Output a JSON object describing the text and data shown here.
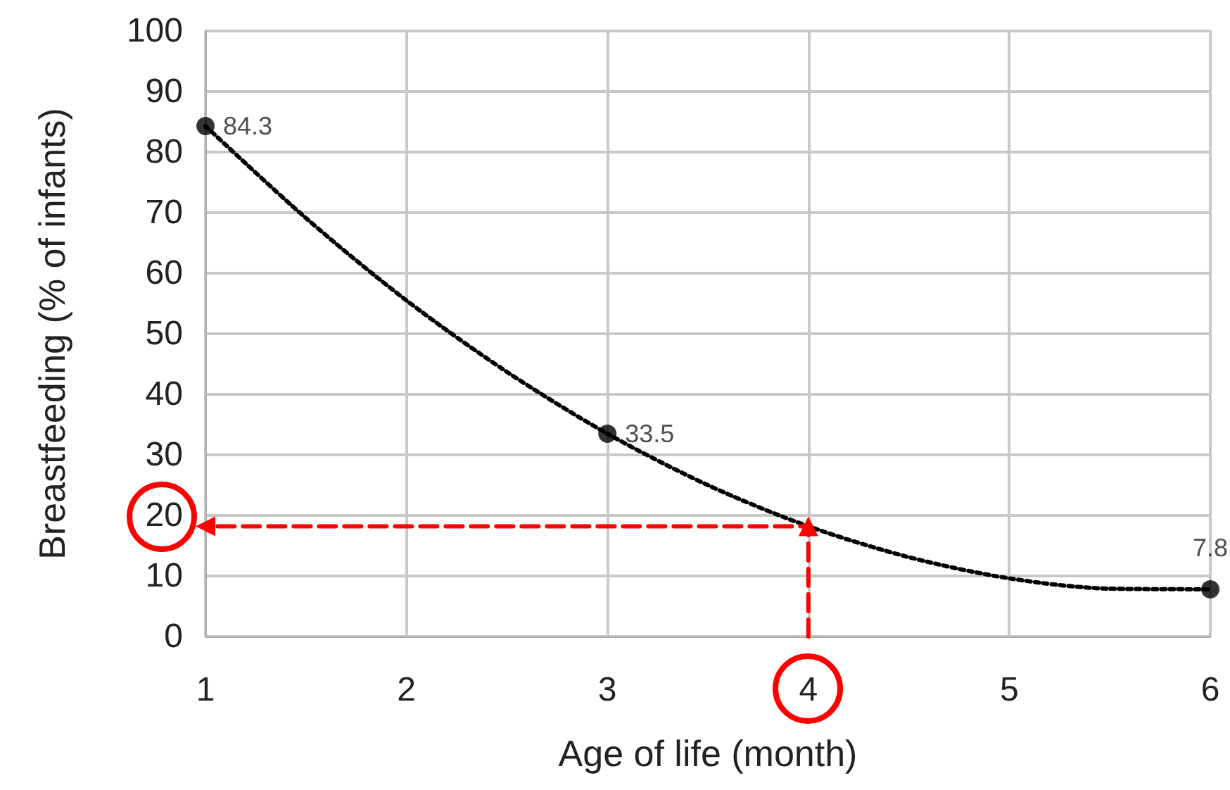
{
  "chart_data": {
    "type": "scatter",
    "xlabel": "Age of life (month)",
    "ylabel": "Breastfeeding (% of infants)",
    "xlim": [
      1,
      6
    ],
    "xticks": [
      1,
      2,
      3,
      4,
      5,
      6
    ],
    "ylim": [
      0,
      100
    ],
    "yticks": [
      0,
      10,
      20,
      30,
      40,
      50,
      60,
      70,
      80,
      90,
      100
    ],
    "grid": true,
    "series": [
      {
        "type": "line",
        "color": "#000000",
        "marker": "none",
        "line_style": "dotted",
        "x": [
          1,
          1.5,
          2,
          2.5,
          3,
          3.5,
          4,
          4.5,
          5,
          5.5,
          6
        ],
        "values": [
          84.3,
          69.1,
          55.5,
          43.7,
          33.5,
          25.0,
          18.2,
          13.1,
          9.6,
          7.9,
          7.8
        ]
      },
      {
        "color": "#000000",
        "marker": "circle",
        "x": [
          1,
          3,
          6
        ],
        "values": [
          84.3,
          33.5,
          7.8
        ],
        "value_labels": [
          "84.3",
          "33.5",
          "7.8"
        ]
      },
      {
        "type": "line",
        "color": "#ff0000",
        "marker": "triangle",
        "line_style": "dashed",
        "x": [
          4,
          4,
          1
        ],
        "values": [
          0,
          18.2,
          18.2
        ]
      }
    ]
  }
}
